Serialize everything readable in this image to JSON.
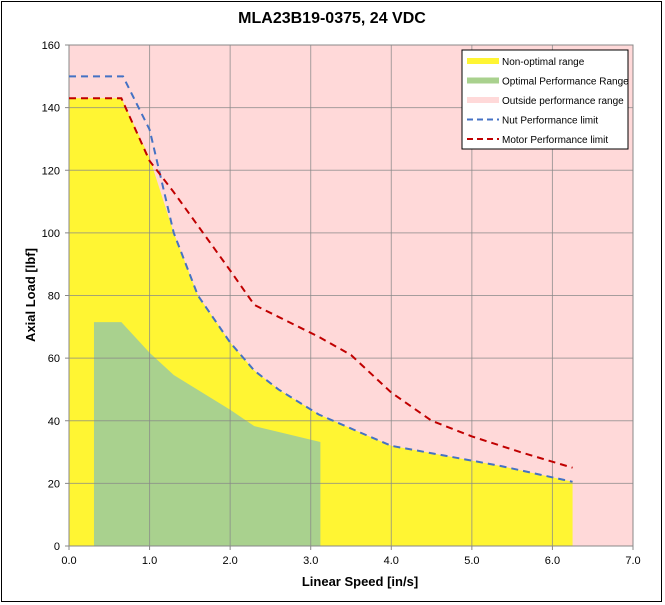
{
  "chart_data": {
    "type": "area",
    "title": "MLA23B19-0375, 24 VDC",
    "xlabel": "Linear Speed [in/s]",
    "ylabel": "Axial Load [lbf]",
    "xlim": [
      0,
      7
    ],
    "ylim": [
      0,
      160
    ],
    "xticks": [
      "0.0",
      "1.0",
      "2.0",
      "3.0",
      "4.0",
      "5.0",
      "6.0",
      "7.0"
    ],
    "yticks": [
      "0",
      "20",
      "40",
      "60",
      "80",
      "100",
      "120",
      "140",
      "160"
    ],
    "grid": true,
    "legend_position": "top-right",
    "background_region": {
      "name": "Outside performance range",
      "color": "#ffd9d9"
    },
    "areas": [
      {
        "name": "Non-optimal range",
        "color": "#fff533",
        "points": [
          [
            0,
            0
          ],
          [
            0,
            143
          ],
          [
            0.65,
            143
          ],
          [
            1.0,
            124
          ],
          [
            1.3,
            100
          ],
          [
            1.6,
            80
          ],
          [
            2.0,
            65
          ],
          [
            2.3,
            56
          ],
          [
            2.6,
            50
          ],
          [
            3.1,
            42
          ],
          [
            3.6,
            36.4
          ],
          [
            4.0,
            32
          ],
          [
            5.35,
            25.6
          ],
          [
            6.25,
            20.5
          ],
          [
            6.25,
            0
          ]
        ]
      },
      {
        "name": "Optimal Performance Range",
        "color": "#a9d18e",
        "points": [
          [
            0.31,
            0
          ],
          [
            0.31,
            71.5
          ],
          [
            0.65,
            71.5
          ],
          [
            1.0,
            61.7
          ],
          [
            1.3,
            54.6
          ],
          [
            2.0,
            43.5
          ],
          [
            2.3,
            38.3
          ],
          [
            3.12,
            33.2
          ],
          [
            3.12,
            0
          ]
        ]
      }
    ],
    "series": [
      {
        "name": "Nut Performance limit",
        "color": "#4472c4",
        "dash": true,
        "points": [
          [
            0,
            150
          ],
          [
            0.67,
            150
          ],
          [
            1.0,
            133
          ],
          [
            1.3,
            100
          ],
          [
            1.6,
            80
          ],
          [
            2.0,
            65
          ],
          [
            2.3,
            56
          ],
          [
            2.6,
            50
          ],
          [
            3.1,
            42
          ],
          [
            3.6,
            36.4
          ],
          [
            4.0,
            32
          ],
          [
            5.35,
            25.6
          ],
          [
            6.25,
            20.5
          ]
        ]
      },
      {
        "name": "Motor Performance limit",
        "color": "#c00000",
        "dash": true,
        "points": [
          [
            0,
            143
          ],
          [
            0.65,
            143
          ],
          [
            1.0,
            123
          ],
          [
            1.3,
            113
          ],
          [
            2.0,
            88
          ],
          [
            2.3,
            77
          ],
          [
            3.1,
            66.8
          ],
          [
            3.5,
            61
          ],
          [
            4.0,
            49
          ],
          [
            4.5,
            40
          ],
          [
            5.0,
            35
          ],
          [
            5.6,
            30
          ],
          [
            6.25,
            25
          ]
        ]
      }
    ],
    "legend": [
      "Non-optimal range",
      "Optimal Performance Range",
      "Outside performance range",
      "Nut Performance limit",
      "Motor Performance limit"
    ]
  }
}
